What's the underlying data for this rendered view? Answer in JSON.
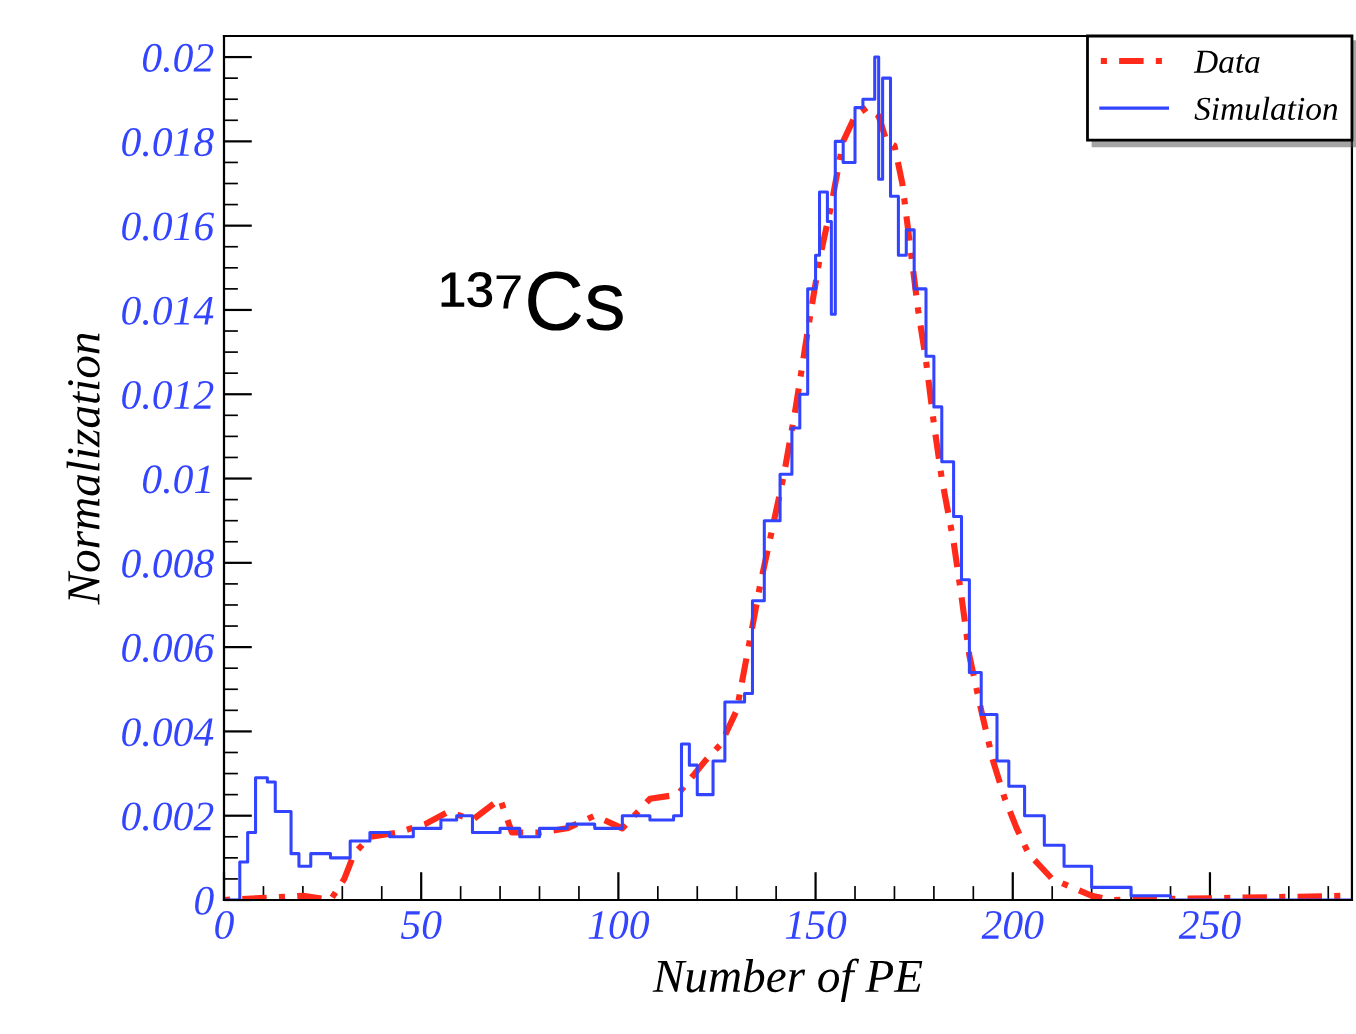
{
  "chart_data": {
    "type": "line",
    "xlabel": "Number of PE",
    "ylabel": "Normalization",
    "xlim": [
      0,
      286
    ],
    "ylim": [
      0,
      0.0205
    ],
    "xticks": [
      0,
      50,
      100,
      150,
      200,
      250
    ],
    "yticks": [
      0,
      0.002,
      0.004,
      0.006,
      0.008,
      0.01,
      0.012,
      0.014,
      0.016,
      0.018,
      0.02
    ],
    "legend": "top right",
    "grid": false,
    "annotations": [
      "¹³⁷Cs"
    ],
    "series": [
      {
        "name": "Data",
        "line_style": "dotted",
        "color": "#ff2a1a",
        "x": [
          0,
          20,
          27,
          30.5,
          33,
          37,
          44,
          51,
          57,
          63,
          70,
          73,
          80,
          87,
          94,
          101,
          108,
          115,
          122,
          126,
          130,
          133,
          136,
          139,
          142,
          145,
          148,
          151,
          154,
          157,
          160,
          163,
          166,
          168,
          170,
          172,
          174,
          176,
          178,
          180,
          182,
          185,
          187,
          189,
          192,
          195,
          198,
          201,
          204,
          207,
          210,
          215,
          220,
          225,
          285
        ],
        "values": [
          0,
          0.0001,
          0,
          0.0005,
          0.0011,
          0.0015,
          0.0016,
          0.0018,
          0.0021,
          0.0019,
          0.0024,
          0.0016,
          0.0016,
          0.0017,
          0.002,
          0.0017,
          0.0024,
          0.0025,
          0.0033,
          0.0037,
          0.0045,
          0.006,
          0.0075,
          0.0088,
          0.0101,
          0.0117,
          0.0135,
          0.0152,
          0.0165,
          0.018,
          0.0186,
          0.0188,
          0.0186,
          0.018,
          0.0179,
          0.017,
          0.0155,
          0.014,
          0.0128,
          0.0113,
          0.01,
          0.0085,
          0.0072,
          0.0058,
          0.0045,
          0.0033,
          0.0024,
          0.0017,
          0.0011,
          0.0008,
          0.0005,
          0.0003,
          0.0001,
          0,
          0.0001
        ]
      },
      {
        "name": "Simulation",
        "type": "step",
        "line_style": "solid",
        "color": "#3344ff",
        "x": [
          0,
          2.4,
          4,
          6,
          8,
          11,
          13,
          15,
          17,
          19,
          22,
          27,
          32,
          37,
          42,
          48,
          55,
          59,
          63,
          70,
          75,
          80,
          87,
          94,
          101,
          108,
          114,
          116,
          118,
          120,
          124,
          127,
          132,
          134,
          137,
          141,
          144,
          146,
          148,
          150,
          151,
          153,
          154,
          155,
          157,
          160,
          162,
          165,
          166,
          167,
          169,
          171,
          173,
          175,
          178,
          180,
          182,
          185,
          187,
          189,
          192,
          196,
          199,
          203,
          208,
          213,
          220,
          230,
          240,
          286
        ],
        "values": [
          0,
          0,
          0.0009,
          0.0016,
          0.0029,
          0.0028,
          0.0021,
          0.0021,
          0.0011,
          0.0008,
          0.0011,
          0.001,
          0.0014,
          0.0016,
          0.0015,
          0.0017,
          0.0019,
          0.002,
          0.0016,
          0.0017,
          0.0015,
          0.0017,
          0.0018,
          0.0017,
          0.002,
          0.0019,
          0.002,
          0.0037,
          0.0032,
          0.0025,
          0.0033,
          0.0047,
          0.0049,
          0.0071,
          0.009,
          0.0101,
          0.0112,
          0.012,
          0.0145,
          0.0153,
          0.0168,
          0.0161,
          0.0139,
          0.018,
          0.0175,
          0.0188,
          0.019,
          0.02,
          0.0171,
          0.0195,
          0.0167,
          0.0153,
          0.0159,
          0.0145,
          0.0129,
          0.0117,
          0.0104,
          0.0091,
          0.0076,
          0.0054,
          0.0044,
          0.0033,
          0.0027,
          0.002,
          0.0013,
          0.0008,
          0.0003,
          0.0001,
          0,
          0
        ]
      }
    ]
  }
}
